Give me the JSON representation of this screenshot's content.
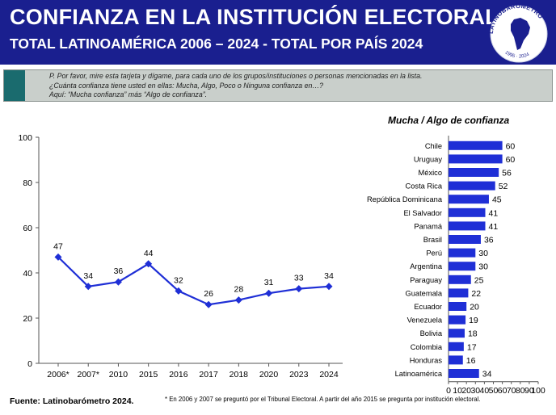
{
  "header": {
    "title": "CONFIANZA EN LA INSTITUCIÓN ELECTORAL",
    "subtitle": "TOTAL LATINOAMÉRICA 2006 – 2024 - TOTAL POR PAÍS 2024",
    "logo_text": "LATINOBARÓMETRO",
    "logo_years": "1995 · 2024"
  },
  "question": {
    "line1": "P. Por favor, mire esta tarjeta y dígame, para cada uno de los grupos/instituciones o personas mencionadas en la lista.",
    "line2": "¿Cuánta confianza tiene usted en ellas: Mucha, Algo, Poco o Ninguna confianza en…?",
    "line3": "Aquí: “Mucha confianza” más “Algo de confianza”."
  },
  "footer": {
    "source": "Fuente: Latinobarómetro 2024.",
    "note": "* En 2006 y 2007  se preguntó por el Tribunal Electoral. A partir del año 2015 se pregunta por institución electoral."
  },
  "colors": {
    "header_bg": "#1a1f8f",
    "series": "#1f2fd6",
    "question_bg": "#c9cfcb",
    "question_bar": "#1a6b6e"
  },
  "chart_data": [
    {
      "type": "line",
      "title": "",
      "xlabel": "",
      "ylabel": "",
      "categories": [
        "2006*",
        "2007*",
        "2010",
        "2015",
        "2016",
        "2017",
        "2018",
        "2020",
        "2023",
        "2024"
      ],
      "values": [
        47,
        34,
        36,
        44,
        32,
        26,
        28,
        31,
        33,
        34
      ],
      "ylim": [
        0,
        100
      ],
      "yticks": [
        0,
        20,
        40,
        60,
        80,
        100
      ],
      "grid": false,
      "data_labels": true
    },
    {
      "type": "bar",
      "orientation": "horizontal",
      "title": "Mucha / Algo de confianza",
      "xlabel": "",
      "ylabel": "",
      "categories": [
        "Chile",
        "Uruguay",
        "México",
        "Costa Rica",
        "República Dominicana",
        "El Salvador",
        "Panamá",
        "Brasil",
        "Perú",
        "Argentina",
        "Paraguay",
        "Guatemala",
        "Ecuador",
        "Venezuela",
        "Bolivia",
        "Colombia",
        "Honduras",
        "Latinoamérica"
      ],
      "values": [
        60,
        60,
        56,
        52,
        45,
        41,
        41,
        36,
        30,
        30,
        25,
        22,
        20,
        19,
        18,
        17,
        16,
        34
      ],
      "xlim": [
        0,
        100
      ],
      "xticks": [
        0,
        10,
        20,
        30,
        40,
        50,
        60,
        70,
        80,
        90,
        100
      ],
      "grid": false,
      "data_labels": true
    }
  ]
}
